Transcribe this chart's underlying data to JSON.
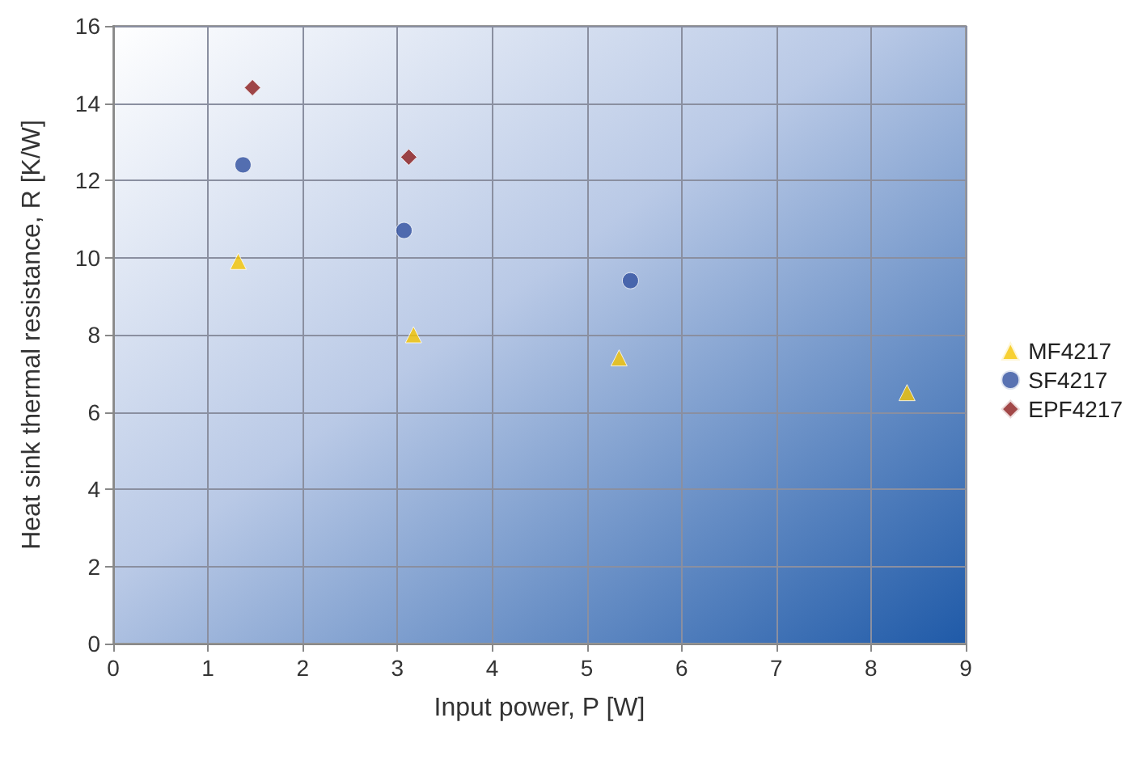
{
  "chart_data": {
    "type": "scatter",
    "xlabel": "Input power, P [W]",
    "ylabel": "Heat sink thermal resistance, R [K/W]",
    "xlim": [
      0,
      9
    ],
    "xticks": [
      0,
      1,
      2,
      3,
      4,
      5,
      6,
      7,
      8,
      9
    ],
    "ylim": [
      0,
      16
    ],
    "yticks": [
      0,
      2,
      4,
      6,
      8,
      10,
      12,
      14,
      16
    ],
    "grid": true,
    "legend": "right",
    "series": [
      {
        "name": "MF4217",
        "color": "#f5c400",
        "marker": "triangle",
        "x": [
          1.32,
          3.17,
          5.34,
          8.38
        ],
        "values": [
          9.9,
          8.0,
          7.4,
          6.5
        ]
      },
      {
        "name": "SF4217",
        "color": "#2f4f9f",
        "marker": "circle",
        "x": [
          1.37,
          3.07,
          5.46
        ],
        "values": [
          12.4,
          10.7,
          9.4
        ]
      },
      {
        "name": "EPF4217",
        "color": "#8b1a1a",
        "marker": "diamond",
        "x": [
          1.47,
          3.12
        ],
        "values": [
          14.4,
          12.6
        ]
      }
    ]
  }
}
